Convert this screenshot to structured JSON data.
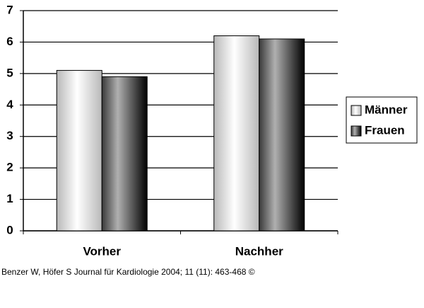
{
  "chart_data": {
    "type": "bar",
    "categories": [
      "Vorher",
      "Nachher"
    ],
    "series": [
      {
        "name": "Männer",
        "color": "#b8b8b8",
        "values": [
          5.1,
          6.2
        ]
      },
      {
        "name": "Frauen",
        "color": "#3a3a3a",
        "values": [
          4.9,
          6.1
        ]
      }
    ],
    "ylim": [
      0,
      7
    ],
    "yticks": [
      0,
      1,
      2,
      3,
      4,
      5,
      6,
      7
    ],
    "grid": true,
    "legend": "right",
    "caption": "Benzer W, Höfer S Journal für Kardiologie 2004; 11 (11): 463-468 ©"
  }
}
